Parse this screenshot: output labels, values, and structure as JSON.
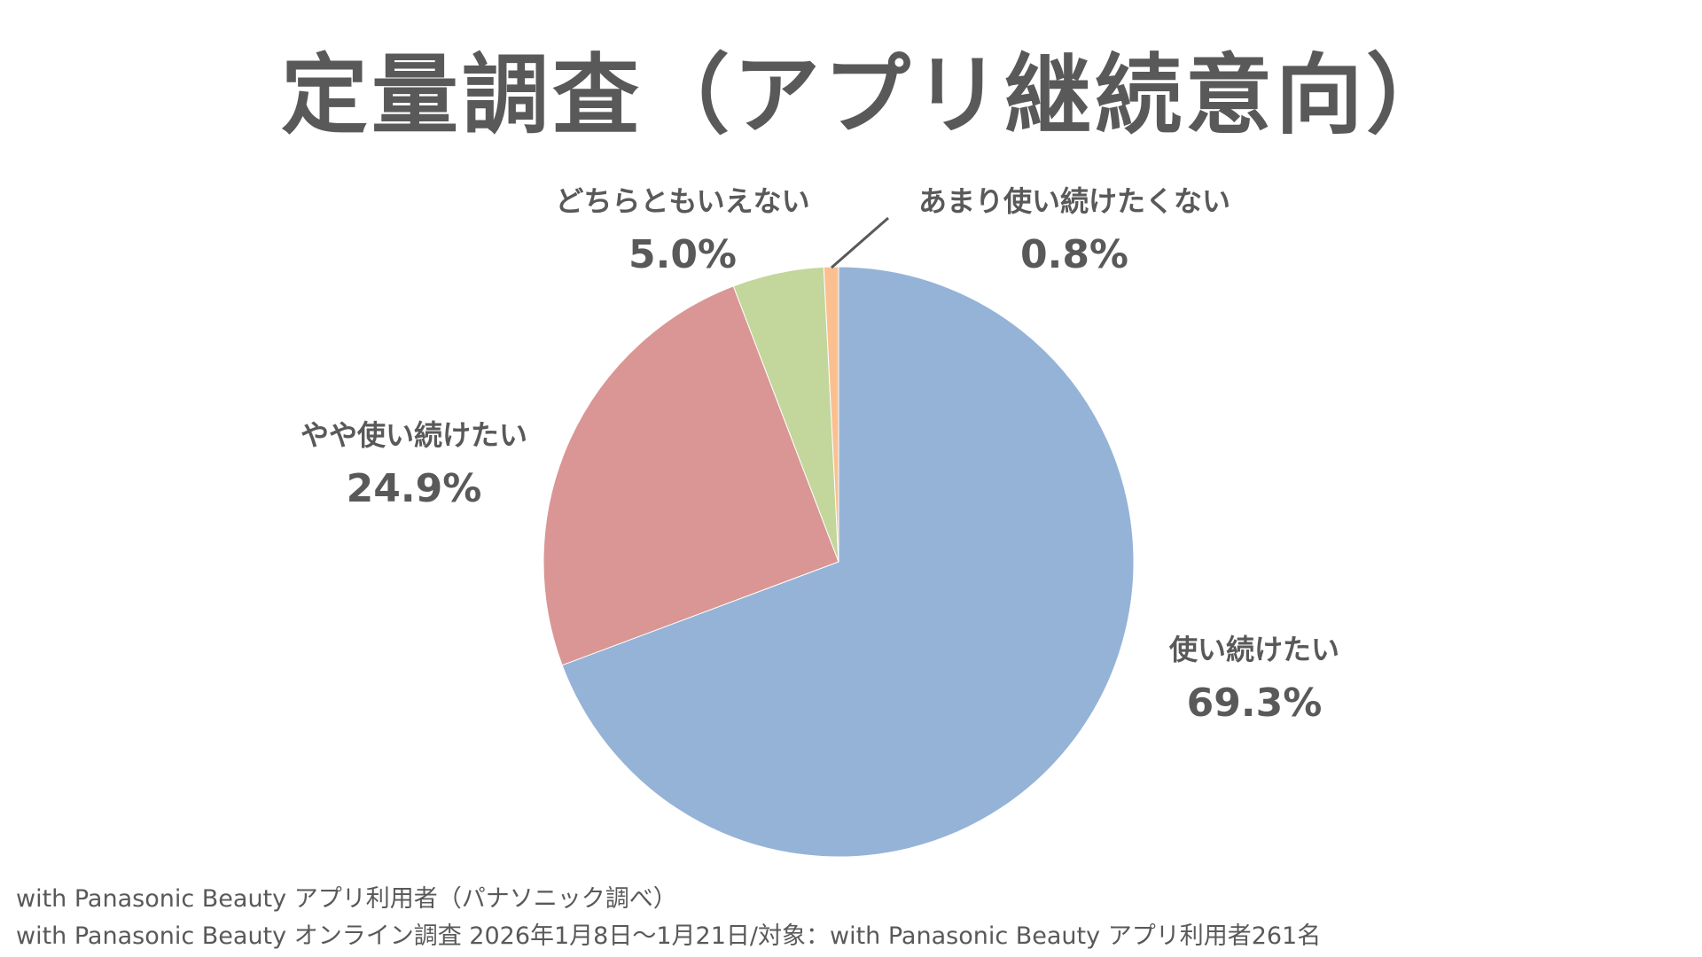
{
  "title": "定量調査（アプリ継続意向）",
  "chart_data": {
    "type": "pie",
    "title": "定量調査（アプリ継続意向）",
    "categories": [
      "使い続けたい",
      "やや使い続けたい",
      "どちらともいえない",
      "あまり使い続けたくない"
    ],
    "values": [
      69.3,
      24.9,
      5.0,
      0.8
    ],
    "value_labels": [
      "69.3%",
      "24.9%",
      "5.0%",
      "0.8%"
    ],
    "colors": [
      "#95B3D7",
      "#D99694",
      "#C3D69B",
      "#FAC090"
    ],
    "start_angle": "12 o'clock",
    "direction": "clockwise",
    "legend": "none (data labels outside slices)"
  },
  "labels": [
    {
      "name": "使い続けたい",
      "value": "69.3%"
    },
    {
      "name": "やや使い続けたい",
      "value": "24.9%"
    },
    {
      "name": "どちらともいえない",
      "value": "5.0%"
    },
    {
      "name": "あまり使い続けたくない",
      "value": "0.8%"
    }
  ],
  "footer": {
    "line1": "with Panasonic Beauty アプリ利用者（パナソニック調べ）",
    "line2": "with Panasonic Beauty オンライン調査 2026年1月8日～1月21日/対象：with Panasonic Beauty アプリ利用者261名"
  }
}
